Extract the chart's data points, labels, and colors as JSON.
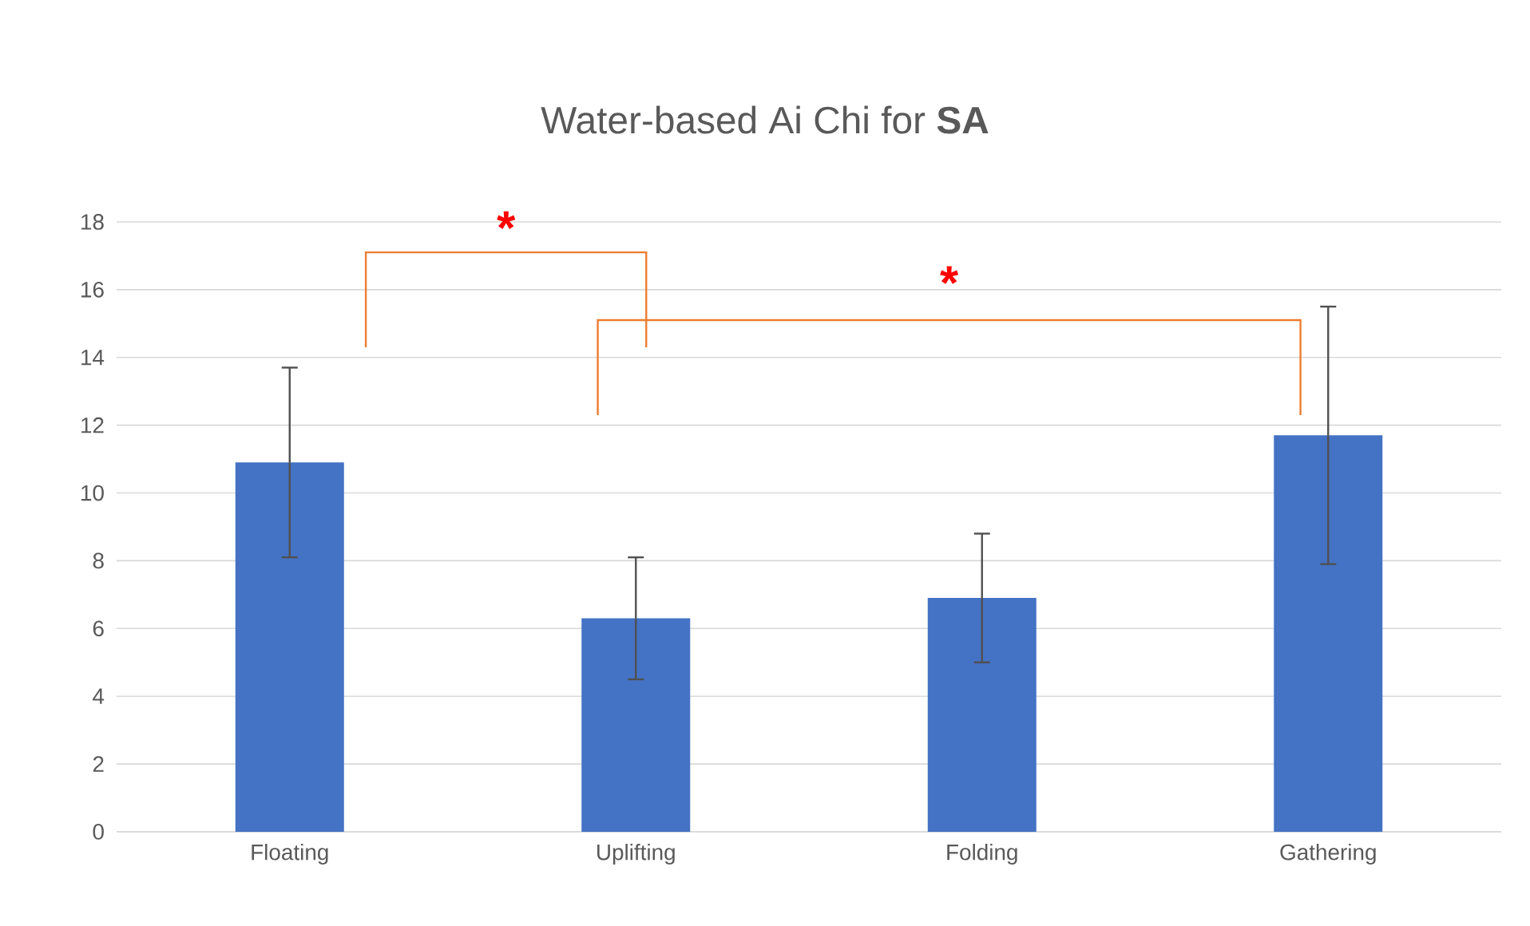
{
  "chart_data": {
    "type": "bar",
    "title": "Water-based Ai Chi for **SA**",
    "categories": [
      "Floating",
      "Uplifting",
      "Folding",
      "Gathering"
    ],
    "values": [
      10.9,
      6.3,
      6.9,
      11.7
    ],
    "errors": [
      2.8,
      1.8,
      1.9,
      3.8
    ],
    "color": "#4472c4",
    "ylim": [
      0,
      18
    ],
    "yticks": [
      0,
      2,
      4,
      6,
      8,
      10,
      12,
      14,
      16,
      18
    ],
    "grid": "y",
    "annotations": [
      "*",
      "*"
    ]
  }
}
